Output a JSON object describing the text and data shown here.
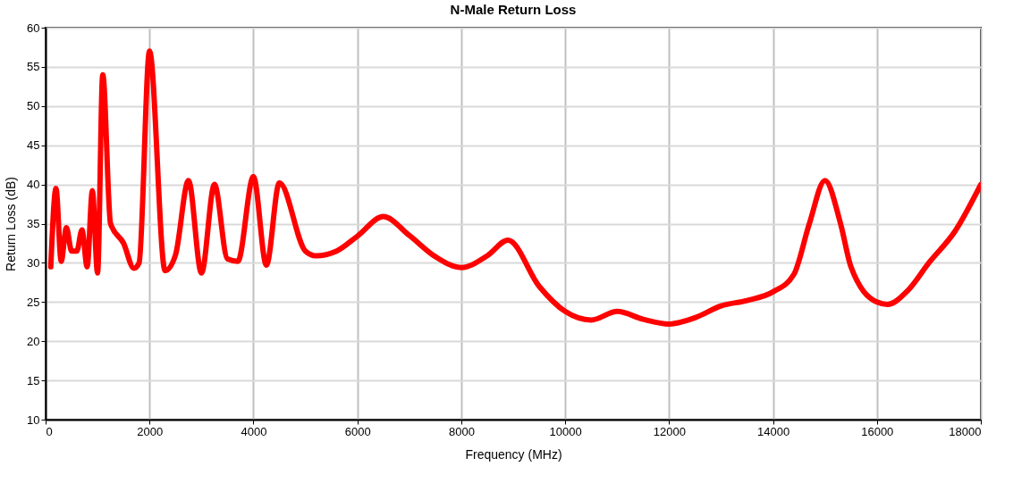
{
  "chart_data": {
    "type": "line",
    "title": "N-Male Return  Loss",
    "xlabel": "Frequency (MHz)",
    "ylabel": "Return Loss (dB)",
    "x": [
      100,
      200,
      300,
      400,
      500,
      600,
      700,
      800,
      900,
      1000,
      1100,
      1250,
      1500,
      1700,
      1800,
      2000,
      2300,
      2500,
      2750,
      3000,
      3250,
      3500,
      3700,
      4000,
      4250,
      4500,
      5000,
      5200,
      5600,
      6000,
      6500,
      7000,
      7500,
      8000,
      8500,
      8900,
      9500,
      10000,
      10500,
      11000,
      11500,
      12000,
      12500,
      13000,
      13500,
      14000,
      14400,
      14700,
      15000,
      15300,
      15500,
      16000,
      16200,
      16600,
      17000,
      17500,
      18000
    ],
    "series": [
      {
        "color": "#ff0000",
        "values": [
          29.5,
          39.5,
          30.2,
          34.5,
          31.5,
          31.5,
          34.2,
          29.5,
          39.2,
          28.7,
          54,
          35,
          32.5,
          29.3,
          30,
          57,
          29,
          31,
          40.5,
          28.7,
          40,
          30.5,
          30.2,
          41,
          29.7,
          40.2,
          31.5,
          30.9,
          31.5,
          33.4,
          35.9,
          33.5,
          30.8,
          29.4,
          30.9,
          32.9,
          27,
          23.8,
          22.7,
          23.8,
          22.8,
          22.2,
          23,
          24.5,
          25.2,
          26.3,
          28.5,
          35,
          40.5,
          35,
          29.5,
          25,
          24.7,
          26.5,
          30,
          34,
          40
        ]
      }
    ],
    "xlim": [
      0,
      18000
    ],
    "xticks": [
      0,
      2000,
      4000,
      6000,
      8000,
      10000,
      12000,
      14000,
      16000,
      18000
    ],
    "ylim": [
      10,
      60
    ],
    "yticks": [
      10,
      15,
      20,
      25,
      30,
      35,
      40,
      45,
      50,
      55,
      60
    ],
    "grid": true,
    "marker": "none",
    "line_style": "solid"
  }
}
